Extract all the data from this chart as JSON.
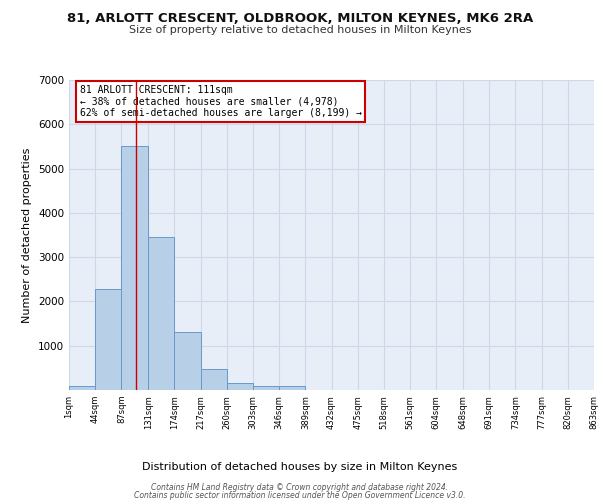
{
  "title1": "81, ARLOTT CRESCENT, OLDBROOK, MILTON KEYNES, MK6 2RA",
  "title2": "Size of property relative to detached houses in Milton Keynes",
  "xlabel": "Distribution of detached houses by size in Milton Keynes",
  "ylabel": "Number of detached properties",
  "bin_edges": [
    1,
    44,
    87,
    131,
    174,
    217,
    260,
    303,
    346,
    389,
    432,
    475,
    518,
    561,
    604,
    648,
    691,
    734,
    777,
    820,
    863
  ],
  "bar_heights": [
    80,
    2280,
    5500,
    3450,
    1300,
    480,
    160,
    80,
    80,
    0,
    0,
    0,
    0,
    0,
    0,
    0,
    0,
    0,
    0,
    0
  ],
  "bar_color": "#b8cfe8",
  "bar_edge_color": "#6699cc",
  "vline_x": 111,
  "vline_color": "#cc0000",
  "annotation_title": "81 ARLOTT CRESCENT: 111sqm",
  "annotation_line1": "← 38% of detached houses are smaller (4,978)",
  "annotation_line2": "62% of semi-detached houses are larger (8,199) →",
  "annotation_box_color": "#ffffff",
  "annotation_box_edge_color": "#cc0000",
  "ylim": [
    0,
    7000
  ],
  "yticks": [
    0,
    1000,
    2000,
    3000,
    4000,
    5000,
    6000,
    7000
  ],
  "grid_color": "#d0d8e8",
  "bg_color": "#e8eef8",
  "footer1": "Contains HM Land Registry data © Crown copyright and database right 2024.",
  "footer2": "Contains public sector information licensed under the Open Government Licence v3.0."
}
